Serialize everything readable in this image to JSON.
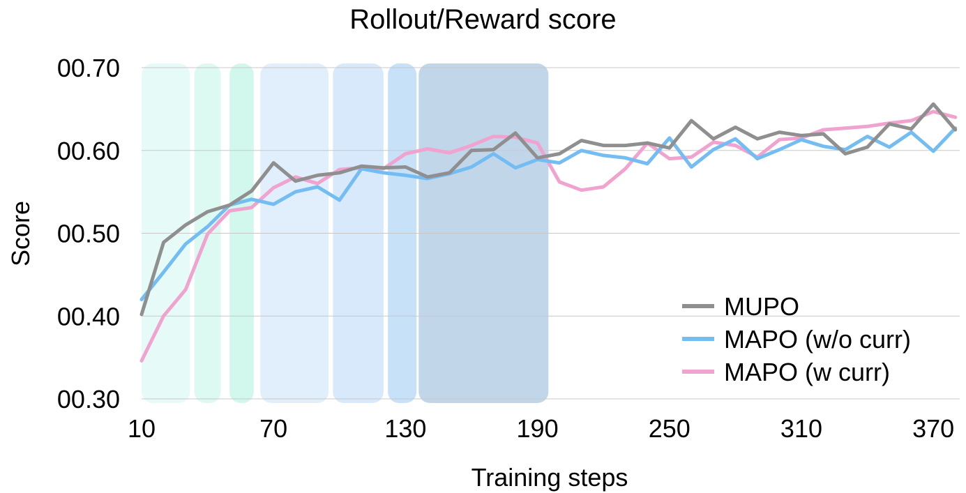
{
  "chart_data": {
    "type": "line",
    "title": "Rollout/Reward score",
    "xlabel": "Training steps",
    "ylabel": "Score",
    "xlim": [
      10,
      382
    ],
    "ylim": [
      0.3,
      0.7
    ],
    "x_ticks": [
      10,
      70,
      130,
      190,
      250,
      310,
      370
    ],
    "y_ticks": [
      {
        "value": 0.3,
        "label": "00.30"
      },
      {
        "value": 0.4,
        "label": "00.40"
      },
      {
        "value": 0.5,
        "label": "00.50"
      },
      {
        "value": 0.6,
        "label": "00.60"
      },
      {
        "value": 0.7,
        "label": "00.70"
      }
    ],
    "grid": "horizontal",
    "legend_position": "bottom-right",
    "shaded_bands": [
      {
        "x_start": 10,
        "x_end": 32,
        "color": "#e6fbf7"
      },
      {
        "x_start": 34,
        "x_end": 46,
        "color": "#dcf9f2"
      },
      {
        "x_start": 50,
        "x_end": 61,
        "color": "#d2f8ee"
      },
      {
        "x_start": 64,
        "x_end": 95,
        "color": "#e1eefb"
      },
      {
        "x_start": 97,
        "x_end": 120,
        "color": "#d7e9fa"
      },
      {
        "x_start": 122,
        "x_end": 135,
        "color": "#c6e1f8"
      },
      {
        "x_start": 136,
        "x_end": 195,
        "color": "#c2d6ea"
      }
    ],
    "x": [
      10,
      20,
      30,
      40,
      50,
      60,
      70,
      80,
      90,
      100,
      110,
      120,
      130,
      140,
      150,
      160,
      170,
      180,
      190,
      200,
      210,
      220,
      230,
      240,
      250,
      260,
      270,
      280,
      290,
      300,
      310,
      320,
      330,
      340,
      350,
      360,
      370,
      380
    ],
    "series": [
      {
        "name": "MUPO",
        "color": "#8f8f8f",
        "values": [
          0.402,
          0.489,
          0.51,
          0.526,
          0.534,
          0.551,
          0.585,
          0.563,
          0.57,
          0.573,
          0.581,
          0.579,
          0.58,
          0.568,
          0.573,
          0.6,
          0.601,
          0.621,
          0.591,
          0.596,
          0.612,
          0.606,
          0.606,
          0.609,
          0.603,
          0.636,
          0.614,
          0.628,
          0.614,
          0.622,
          0.618,
          0.62,
          0.596,
          0.604,
          0.632,
          0.626,
          0.656,
          0.625
        ]
      },
      {
        "name": "MAPO (w/o curr)",
        "color": "#73bdf2",
        "values": [
          0.42,
          0.453,
          0.487,
          0.508,
          0.534,
          0.541,
          0.535,
          0.55,
          0.556,
          0.54,
          0.578,
          0.573,
          0.57,
          0.566,
          0.572,
          0.58,
          0.596,
          0.579,
          0.589,
          0.585,
          0.6,
          0.594,
          0.591,
          0.584,
          0.615,
          0.58,
          0.601,
          0.614,
          0.59,
          0.601,
          0.613,
          0.605,
          0.601,
          0.617,
          0.604,
          0.622,
          0.599,
          0.627
        ]
      },
      {
        "name": "MAPO (w curr)",
        "color": "#f0a3cf",
        "values": [
          0.346,
          0.4,
          0.432,
          0.499,
          0.527,
          0.531,
          0.555,
          0.568,
          0.56,
          0.577,
          0.579,
          0.578,
          0.596,
          0.602,
          0.597,
          0.606,
          0.617,
          0.616,
          0.609,
          0.562,
          0.552,
          0.556,
          0.578,
          0.609,
          0.59,
          0.592,
          0.61,
          0.606,
          0.592,
          0.613,
          0.615,
          0.625,
          0.627,
          0.629,
          0.633,
          0.636,
          0.647,
          0.64
        ]
      }
    ]
  }
}
